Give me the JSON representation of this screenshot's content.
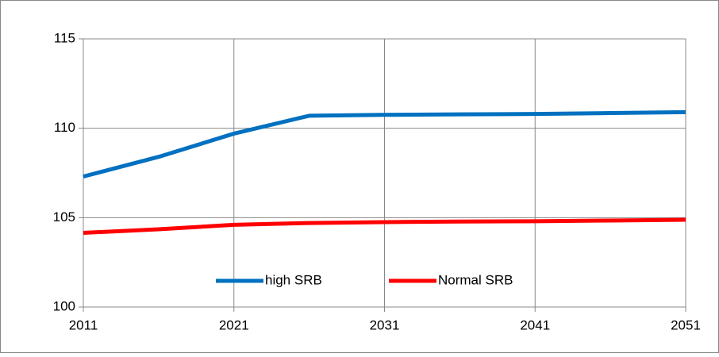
{
  "chart_data": {
    "type": "line",
    "x": [
      2011,
      2016,
      2021,
      2026,
      2031,
      2036,
      2041,
      2046,
      2051
    ],
    "series": [
      {
        "name": "high SRB",
        "color": "#0070c0",
        "values": [
          107.3,
          108.4,
          109.7,
          110.7,
          110.75,
          110.78,
          110.8,
          110.85,
          110.9
        ]
      },
      {
        "name": "Normal SRB",
        "color": "#ff0000",
        "values": [
          104.15,
          104.35,
          104.6,
          104.7,
          104.75,
          104.78,
          104.8,
          104.84,
          104.88
        ]
      }
    ],
    "xlim": [
      2011,
      2051
    ],
    "xticks": [
      2011,
      2021,
      2031,
      2041,
      2051
    ],
    "ylim": [
      100,
      115
    ],
    "yticks": [
      100,
      105,
      110,
      115
    ],
    "grid": true,
    "legend": "bottom"
  }
}
